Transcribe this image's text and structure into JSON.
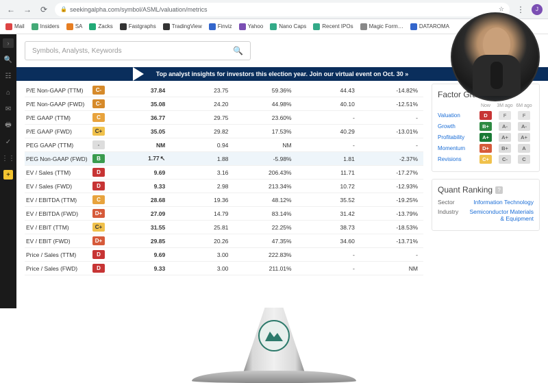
{
  "url": "seekingalpha.com/symbol/ASML/valuation/metrics",
  "bookmarks": [
    {
      "label": "Mail",
      "color": "#d44"
    },
    {
      "label": "Insiders",
      "color": "#4a7"
    },
    {
      "label": "SA",
      "color": "#e67e22"
    },
    {
      "label": "Zacks",
      "color": "#2a7"
    },
    {
      "label": "Fastgraphs",
      "color": "#333"
    },
    {
      "label": "TradingView",
      "color": "#333"
    },
    {
      "label": "Finviz",
      "color": "#36c"
    },
    {
      "label": "Yahoo",
      "color": "#7b4fb3"
    },
    {
      "label": "Nano Caps",
      "color": "#3a8"
    },
    {
      "label": "Recent IPOs",
      "color": "#3a8"
    },
    {
      "label": "Magic Form…",
      "color": "#888"
    },
    {
      "label": "DATAROMA",
      "color": "#36c"
    }
  ],
  "search_placeholder": "Symbols, Analysts, Keywords",
  "banner_text": "Top analyst insights for investors this election year. Join our virtual event on Oct. 30 »",
  "metrics": [
    {
      "name": "P/E Non-GAAP (TTM)",
      "grade": "C-",
      "gc": "g-Cminus",
      "c1": "37.84",
      "c2": "23.75",
      "c3": "59.36%",
      "c4": "44.43",
      "c5": "-14.82%"
    },
    {
      "name": "P/E Non-GAAP (FWD)",
      "grade": "C-",
      "gc": "g-Cminus",
      "c1": "35.08",
      "c2": "24.20",
      "c3": "44.98%",
      "c4": "40.10",
      "c5": "-12.51%"
    },
    {
      "name": "P/E GAAP (TTM)",
      "grade": "C",
      "gc": "g-C",
      "c1": "36.77",
      "c2": "29.75",
      "c3": "23.60%",
      "c4": "-",
      "c5": "-"
    },
    {
      "name": "P/E GAAP (FWD)",
      "grade": "C+",
      "gc": "g-Cplus",
      "c1": "35.05",
      "c2": "29.82",
      "c3": "17.53%",
      "c4": "40.29",
      "c5": "-13.01%"
    },
    {
      "name": "PEG GAAP (TTM)",
      "grade": "-",
      "gc": "g-gray",
      "c1": "NM",
      "c2": "0.94",
      "c3": "NM",
      "c4": "-",
      "c5": "-"
    },
    {
      "name": "PEG Non-GAAP (FWD)",
      "grade": "B",
      "gc": "g-B",
      "c1": "1.77",
      "c2": "1.88",
      "c3": "-5.98%",
      "c4": "1.81",
      "c5": "-2.37%",
      "hl": true,
      "cursor": true
    },
    {
      "name": "EV / Sales (TTM)",
      "grade": "D",
      "gc": "g-D",
      "c1": "9.69",
      "c2": "3.16",
      "c3": "206.43%",
      "c4": "11.71",
      "c5": "-17.27%"
    },
    {
      "name": "EV / Sales (FWD)",
      "grade": "D",
      "gc": "g-D",
      "c1": "9.33",
      "c2": "2.98",
      "c3": "213.34%",
      "c4": "10.72",
      "c5": "-12.93%"
    },
    {
      "name": "EV / EBITDA (TTM)",
      "grade": "C",
      "gc": "g-C",
      "c1": "28.68",
      "c2": "19.36",
      "c3": "48.12%",
      "c4": "35.52",
      "c5": "-19.25%"
    },
    {
      "name": "EV / EBITDA (FWD)",
      "grade": "D+",
      "gc": "g-Dplus",
      "c1": "27.09",
      "c2": "14.79",
      "c3": "83.14%",
      "c4": "31.42",
      "c5": "-13.79%"
    },
    {
      "name": "EV / EBIT (TTM)",
      "grade": "C+",
      "gc": "g-Cplus",
      "c1": "31.55",
      "c2": "25.81",
      "c3": "22.25%",
      "c4": "38.73",
      "c5": "-18.53%"
    },
    {
      "name": "EV / EBIT (FWD)",
      "grade": "D+",
      "gc": "g-Dplus",
      "c1": "29.85",
      "c2": "20.26",
      "c3": "47.35%",
      "c4": "34.60",
      "c5": "-13.71%"
    },
    {
      "name": "Price / Sales (TTM)",
      "grade": "D",
      "gc": "g-D",
      "c1": "9.69",
      "c2": "3.00",
      "c3": "222.83%",
      "c4": "-",
      "c5": "-"
    },
    {
      "name": "Price / Sales (FWD)",
      "grade": "D",
      "gc": "g-D",
      "c1": "9.33",
      "c2": "3.00",
      "c3": "211.01%",
      "c4": "-",
      "c5": "NM"
    }
  ],
  "factor_grades": {
    "title": "Factor Grades",
    "head": {
      "now": "Now",
      "m3": "3M ago",
      "m6": "6M ago"
    },
    "rows": [
      {
        "label": "Valuation",
        "now": "D",
        "nc": "g-D",
        "m3": "F",
        "m3c": "g-grayF",
        "m6": "F",
        "m6c": "g-grayF"
      },
      {
        "label": "Growth",
        "now": "B+",
        "nc": "g-Bplus",
        "m3": "A-",
        "m3c": "g-gray",
        "m6": "A-",
        "m6c": "g-gray"
      },
      {
        "label": "Profitability",
        "now": "A+",
        "nc": "g-Aplus",
        "m3": "A+",
        "m3c": "g-gray",
        "m6": "A+",
        "m6c": "g-gray"
      },
      {
        "label": "Momentum",
        "now": "D+",
        "nc": "g-Dplus",
        "m3": "B+",
        "m3c": "g-gray",
        "m6": "A",
        "m6c": "g-gray"
      },
      {
        "label": "Revisions",
        "now": "C+",
        "nc": "g-Cplus",
        "m3": "C-",
        "m3c": "g-gray",
        "m6": "C",
        "m6c": "g-gray"
      }
    ]
  },
  "quant_ranking": {
    "title": "Quant Ranking",
    "sector_label": "Sector",
    "sector_value": "Information Technology",
    "industry_label": "Industry",
    "industry_value": "Semiconductor Materials & Equipment"
  }
}
